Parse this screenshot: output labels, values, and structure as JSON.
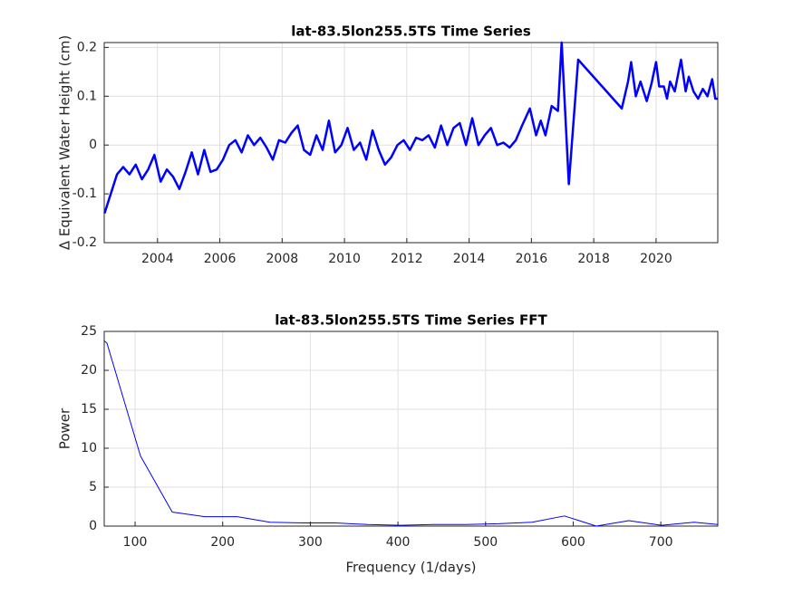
{
  "chart_data": [
    {
      "type": "line",
      "title": "lat-83.5lon255.5TS Time Series",
      "ylabel": "Δ  Equivalent Water Height (cm)",
      "x": [
        2002.3,
        2002.5,
        2002.7,
        2002.9,
        2003.1,
        2003.3,
        2003.5,
        2003.7,
        2003.9,
        2004.1,
        2004.3,
        2004.5,
        2004.7,
        2004.9,
        2005.1,
        2005.3,
        2005.5,
        2005.7,
        2005.9,
        2006.1,
        2006.3,
        2006.5,
        2006.7,
        2006.9,
        2007.1,
        2007.3,
        2007.5,
        2007.7,
        2007.9,
        2008.1,
        2008.3,
        2008.5,
        2008.7,
        2008.9,
        2009.1,
        2009.3,
        2009.5,
        2009.7,
        2009.9,
        2010.1,
        2010.3,
        2010.5,
        2010.7,
        2010.9,
        2011.1,
        2011.3,
        2011.5,
        2011.7,
        2011.9,
        2012.1,
        2012.3,
        2012.5,
        2012.7,
        2012.9,
        2013.1,
        2013.3,
        2013.5,
        2013.7,
        2013.9,
        2014.1,
        2014.3,
        2014.5,
        2014.7,
        2014.9,
        2015.1,
        2015.3,
        2015.5,
        2015.7,
        2015.95,
        2016.15,
        2016.3,
        2016.45,
        2016.65,
        2016.85,
        2016.97,
        2017.2,
        2017.5,
        2018.9,
        2019.1,
        2019.2,
        2019.35,
        2019.5,
        2019.7,
        2019.85,
        2020.0,
        2020.1,
        2020.25,
        2020.35,
        2020.45,
        2020.6,
        2020.8,
        2020.95,
        2021.05,
        2021.2,
        2021.35,
        2021.5,
        2021.65,
        2021.8,
        2021.9,
        2021.98
      ],
      "values": [
        -0.14,
        -0.1,
        -0.06,
        -0.045,
        -0.06,
        -0.04,
        -0.07,
        -0.05,
        -0.02,
        -0.075,
        -0.05,
        -0.065,
        -0.09,
        -0.055,
        -0.015,
        -0.06,
        -0.01,
        -0.055,
        -0.05,
        -0.03,
        0.0,
        0.01,
        -0.015,
        0.02,
        0.0,
        0.015,
        -0.005,
        -0.03,
        0.01,
        0.005,
        0.025,
        0.04,
        -0.01,
        -0.02,
        0.02,
        -0.01,
        0.05,
        -0.015,
        0.0,
        0.035,
        -0.01,
        0.005,
        -0.03,
        0.03,
        -0.01,
        -0.04,
        -0.025,
        0.0,
        0.01,
        -0.01,
        0.015,
        0.01,
        0.02,
        -0.005,
        0.04,
        0.0,
        0.035,
        0.045,
        0.0,
        0.055,
        0.0,
        0.02,
        0.035,
        0.0,
        0.005,
        -0.005,
        0.01,
        0.04,
        0.075,
        0.02,
        0.05,
        0.02,
        0.08,
        0.07,
        0.21,
        -0.08,
        0.175,
        0.075,
        0.13,
        0.17,
        0.1,
        0.13,
        0.09,
        0.125,
        0.17,
        0.12,
        0.12,
        0.095,
        0.13,
        0.11,
        0.175,
        0.11,
        0.14,
        0.11,
        0.095,
        0.115,
        0.1,
        0.135,
        0.095,
        0.095
      ],
      "color": "#0000ff",
      "line_width": 2.5,
      "xlim": [
        2002.29,
        2021.98
      ],
      "xticks": [
        2004,
        2006,
        2008,
        2010,
        2012,
        2014,
        2016,
        2018,
        2020
      ],
      "ylim": [
        -0.2,
        0.21
      ],
      "yticks": [
        -0.2,
        -0.1,
        0,
        0.1,
        0.2
      ],
      "grid": true
    },
    {
      "type": "line",
      "title": "lat-83.5lon255.5TS Time Series FFT",
      "xlabel": "Frequency (1/days)",
      "ylabel": "Power",
      "x": [
        64.8,
        67.9,
        106.2,
        142.4,
        179.6,
        216.8,
        254,
        291.3,
        328.5,
        365.7,
        403,
        440,
        477.5,
        514.7,
        553,
        590,
        626.3,
        663.5,
        700.8,
        738,
        765
      ],
      "values": [
        23.8,
        23.5,
        9,
        1.8,
        1.2,
        1.2,
        0.5,
        0.4,
        0.4,
        0.2,
        0.1,
        0.2,
        0.2,
        0.3,
        0.5,
        1.3,
        0.0,
        0.7,
        0.1,
        0.5,
        0.2
      ],
      "color": "#0000ff",
      "line_width": 1,
      "xlim": [
        64.8,
        765
      ],
      "xticks": [
        100,
        200,
        300,
        400,
        500,
        600,
        700
      ],
      "ylim": [
        0,
        25
      ],
      "yticks": [
        0,
        5,
        10,
        15,
        20,
        25
      ],
      "grid": true
    }
  ]
}
